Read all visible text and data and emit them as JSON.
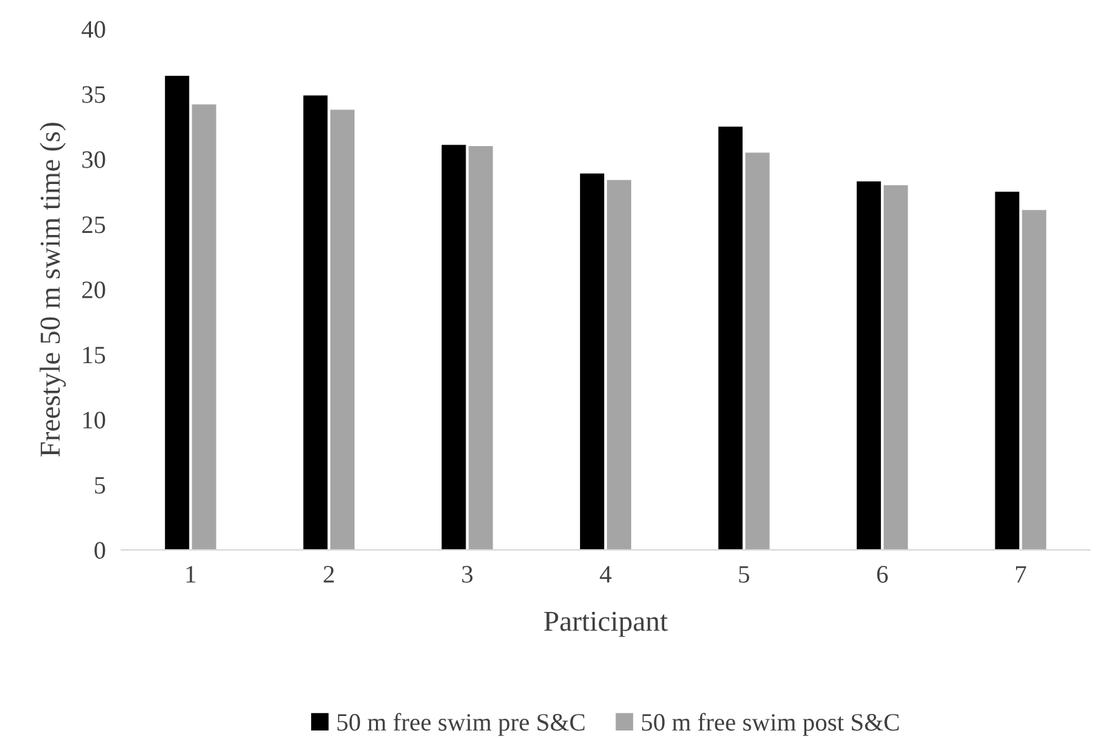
{
  "chart_data": {
    "type": "bar",
    "xlabel": "Participant",
    "ylabel": "Freestyle 50 m swim time (s)",
    "categories": [
      "1",
      "2",
      "3",
      "4",
      "5",
      "6",
      "7"
    ],
    "series": [
      {
        "name": "50 m free swim pre S&C",
        "color": "#000000",
        "values": [
          36.4,
          34.9,
          31.1,
          28.9,
          32.5,
          28.3,
          27.5
        ]
      },
      {
        "name": "50 m free swim post S&C",
        "color": "#a5a5a5",
        "values": [
          34.2,
          33.8,
          31.0,
          28.4,
          30.5,
          28.0,
          26.1
        ]
      }
    ],
    "ylim": [
      0,
      40
    ],
    "yticks": [
      0,
      5,
      10,
      15,
      20,
      25,
      30,
      35,
      40
    ],
    "grid": false,
    "legend": "bottom"
  }
}
